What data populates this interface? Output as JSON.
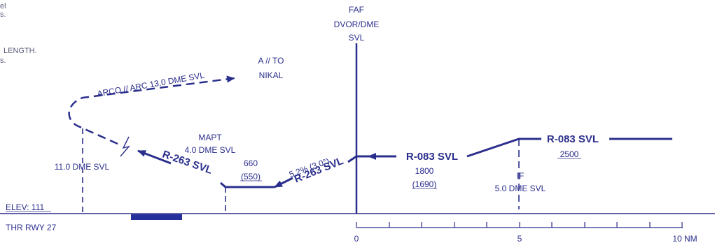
{
  "colors": {
    "ink": "#2b2f8c",
    "bar": "#26309a"
  },
  "partial_notes": {
    "line1": "el",
    "line2": "s.",
    "line3": "LENGTH.",
    "line4": "s."
  },
  "faf": {
    "line1": "FAF",
    "line2": "DVOR/DME",
    "line3": "SVL"
  },
  "missed_approach": {
    "to_line1": "A // TO",
    "to_line2": "NIKAL",
    "arc": "ARCO // ARC 13.0 DME SVL",
    "fix_dme": "11.0 DME SVL",
    "radial": "R-263 SVL"
  },
  "mapt": {
    "line1": "MAPT",
    "line2": "4.0 DME SVL",
    "altitude": "660",
    "height": "(550)"
  },
  "final": {
    "gradient": "5.2% (3.0°)",
    "radial": "R-263 SVL"
  },
  "intermediate": {
    "radial": "R-083 SVL",
    "altitude": "1800",
    "height": "(1690)"
  },
  "initial": {
    "radial": "R-083 SVL",
    "altitude": "2500"
  },
  "if_fix": {
    "label": "IF",
    "dme": "5.0 DME SVL"
  },
  "aerodrome": {
    "elev": "ELEV: 111",
    "thr": "THR RWY 27"
  },
  "scale": {
    "ticks": [
      "0",
      "5",
      "10 NM"
    ]
  }
}
